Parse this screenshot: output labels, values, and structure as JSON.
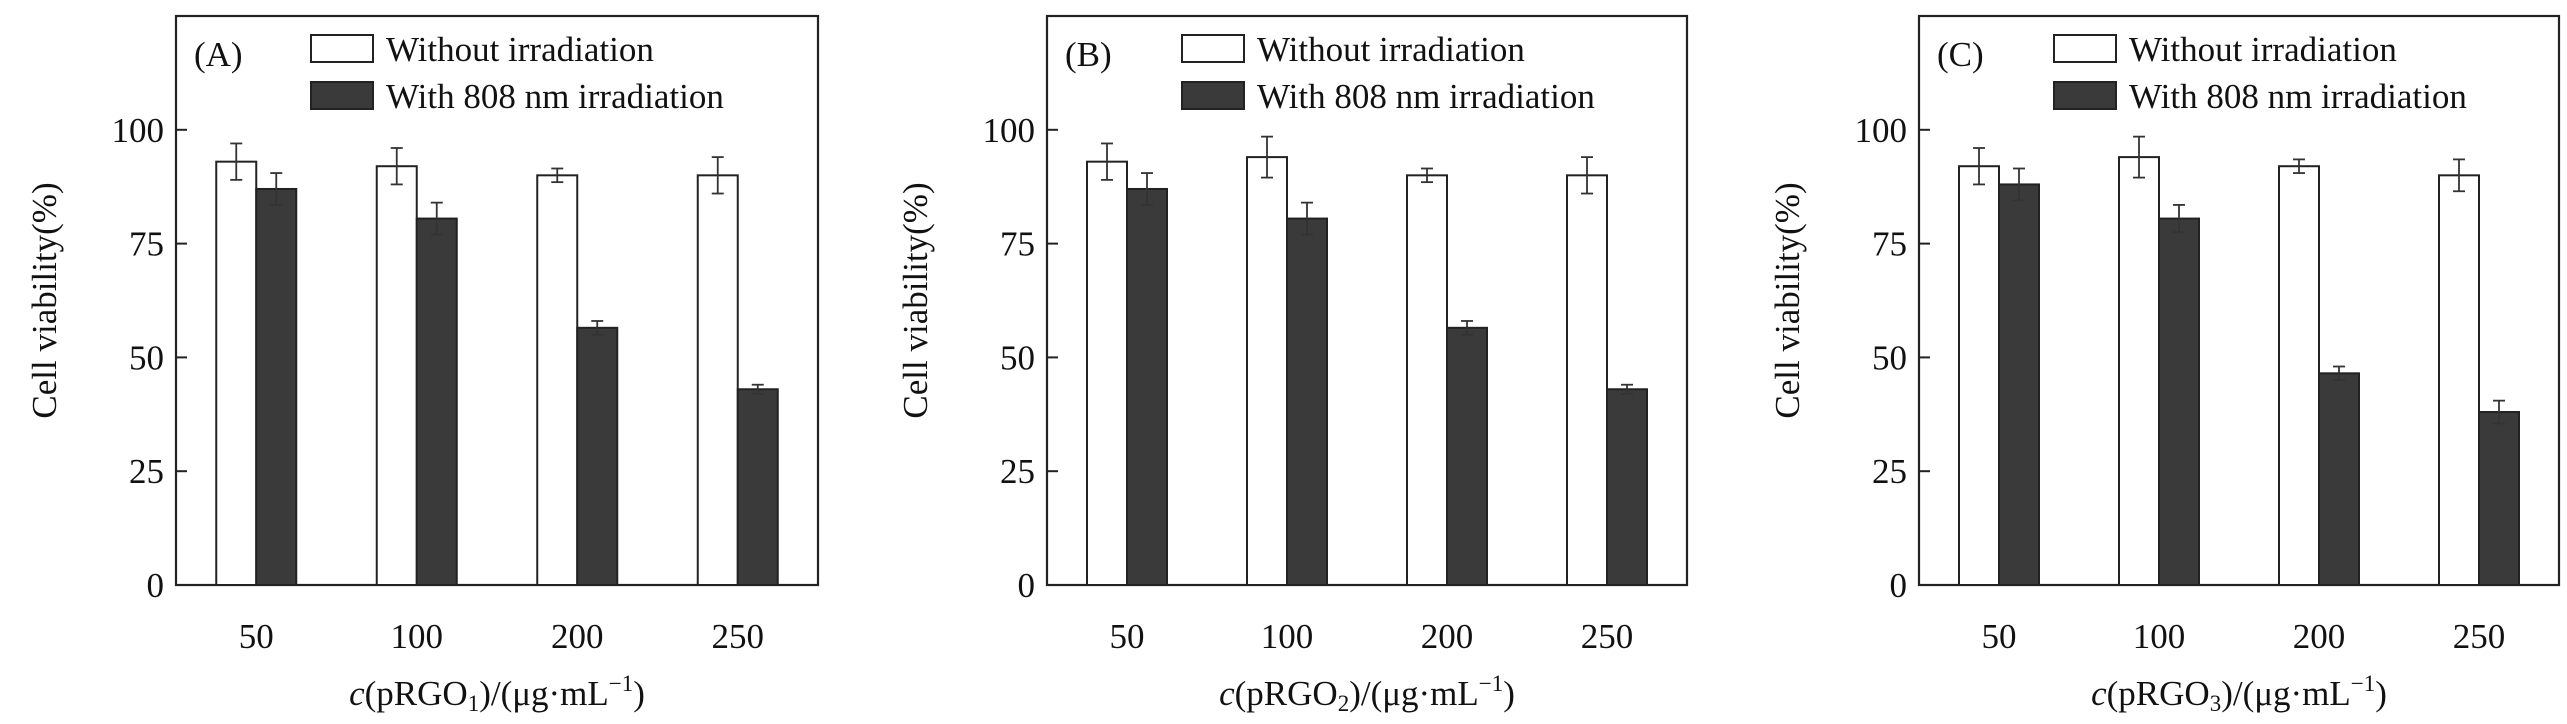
{
  "chart_data": [
    {
      "type": "bar",
      "panel_label": "(A)",
      "categories": [
        "50",
        "100",
        "200",
        "250"
      ],
      "series": [
        {
          "name": "Without irradiation",
          "values": [
            93,
            92,
            90,
            90
          ],
          "errors": [
            4,
            4,
            1.5,
            4
          ]
        },
        {
          "name": "With 808 nm irradiation",
          "values": [
            87,
            80.5,
            56.5,
            43
          ],
          "errors": [
            3.5,
            3.5,
            1.5,
            1
          ]
        }
      ],
      "ylabel": "Cell viability(%)",
      "xlabel": {
        "italic": "c",
        "pre": "(pRGO",
        "sub": "1",
        "post": ")/(μg·mL",
        "sup": "−1",
        "end": ")"
      },
      "ylim": [
        0,
        125
      ],
      "yticks": [
        0,
        25,
        50,
        75,
        100
      ],
      "legend": "top-right"
    },
    {
      "type": "bar",
      "panel_label": "(B)",
      "categories": [
        "50",
        "100",
        "200",
        "250"
      ],
      "series": [
        {
          "name": "Without irradiation",
          "values": [
            93,
            94,
            90,
            90
          ],
          "errors": [
            4,
            4.5,
            1.5,
            4
          ]
        },
        {
          "name": "With 808 nm irradiation",
          "values": [
            87,
            80.5,
            56.5,
            43
          ],
          "errors": [
            3.5,
            3.5,
            1.5,
            1
          ]
        }
      ],
      "ylabel": "Cell viability(%)",
      "xlabel": {
        "italic": "c",
        "pre": "(pRGO",
        "sub": "2",
        "post": ")/(μg·mL",
        "sup": "−1",
        "end": ")"
      },
      "ylim": [
        0,
        125
      ],
      "yticks": [
        0,
        25,
        50,
        75,
        100
      ],
      "legend": "top-right"
    },
    {
      "type": "bar",
      "panel_label": "(C)",
      "categories": [
        "50",
        "100",
        "200",
        "250"
      ],
      "series": [
        {
          "name": "Without irradiation",
          "values": [
            92,
            94,
            92,
            90
          ],
          "errors": [
            4,
            4.5,
            1.5,
            3.5
          ]
        },
        {
          "name": "With 808 nm irradiation",
          "values": [
            88,
            80.5,
            46.5,
            38
          ],
          "errors": [
            3.5,
            3,
            1.5,
            2.5
          ]
        }
      ],
      "ylabel": "Cell viability(%)",
      "xlabel": {
        "italic": "c",
        "pre": "(pRGO",
        "sub": "3",
        "post": ")/(μg·mL",
        "sup": "−1",
        "end": ")"
      },
      "ylim": [
        0,
        125
      ],
      "yticks": [
        0,
        25,
        50,
        75,
        100
      ],
      "legend": "top-right"
    }
  ]
}
